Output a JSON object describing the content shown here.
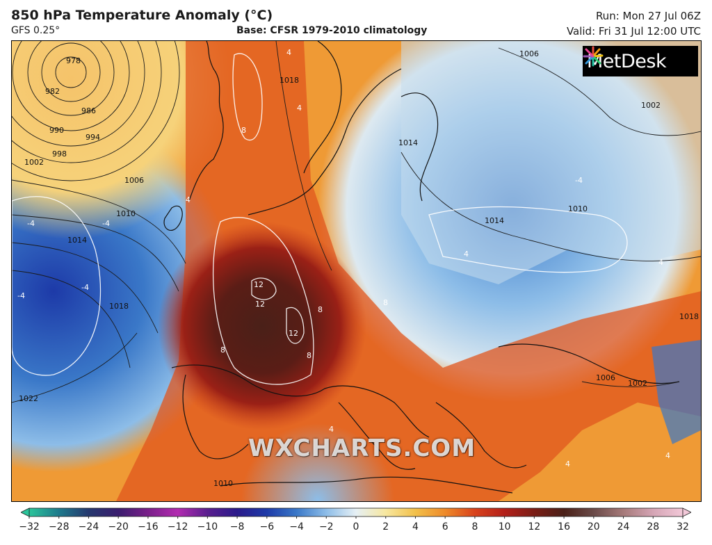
{
  "header": {
    "title": "850 hPa Temperature Anomaly (°C)",
    "model": "GFS 0.25°",
    "base": "Base: CFSR 1979-2010 climatology",
    "run": "Run: Mon 27 Jul 06Z",
    "valid": "Valid: Fri 31 Jul 12:00 UTC"
  },
  "logo": {
    "text": "MetDesk"
  },
  "watermark": {
    "text": "WXCHARTS.COM"
  },
  "map": {
    "region": "Europe",
    "isobar_labels": [
      "978",
      "982",
      "986",
      "990",
      "994",
      "998",
      "1002",
      "1006",
      "1010",
      "1014",
      "1018",
      "1022",
      "1006",
      "1014",
      "1010",
      "1018",
      "1002",
      "1006",
      "1002",
      "1010",
      "1014",
      "1018"
    ],
    "anomaly_contour_labels": [
      "12",
      "12",
      "12",
      "8",
      "8",
      "8",
      "8",
      "8",
      "4",
      "4",
      "4",
      "-4",
      "-4",
      "-4",
      "-4",
      "-4",
      "4",
      "4",
      "4",
      "4",
      "4"
    ]
  },
  "colorbar": {
    "ticks": [
      "−32",
      "−28",
      "−24",
      "−20",
      "−16",
      "−12",
      "−10",
      "−8",
      "−6",
      "−4",
      "−2",
      "0",
      "2",
      "4",
      "6",
      "8",
      "10",
      "12",
      "16",
      "20",
      "24",
      "28",
      "32"
    ],
    "colors": [
      "#2bc49a",
      "#1e7a8c",
      "#25386e",
      "#3a1d6e",
      "#7a1f8a",
      "#b22bb0",
      "#5a1f8f",
      "#2a1a8a",
      "#1d3aa8",
      "#3a78c8",
      "#8dbde8",
      "#e6f0f5",
      "#f7e7a0",
      "#f2c04a",
      "#ee8a2a",
      "#d8421c",
      "#b3201a",
      "#7a1d16",
      "#4a2018",
      "#6a4a48",
      "#a67a7a",
      "#d5a5b5",
      "#f2c8d8"
    ]
  }
}
